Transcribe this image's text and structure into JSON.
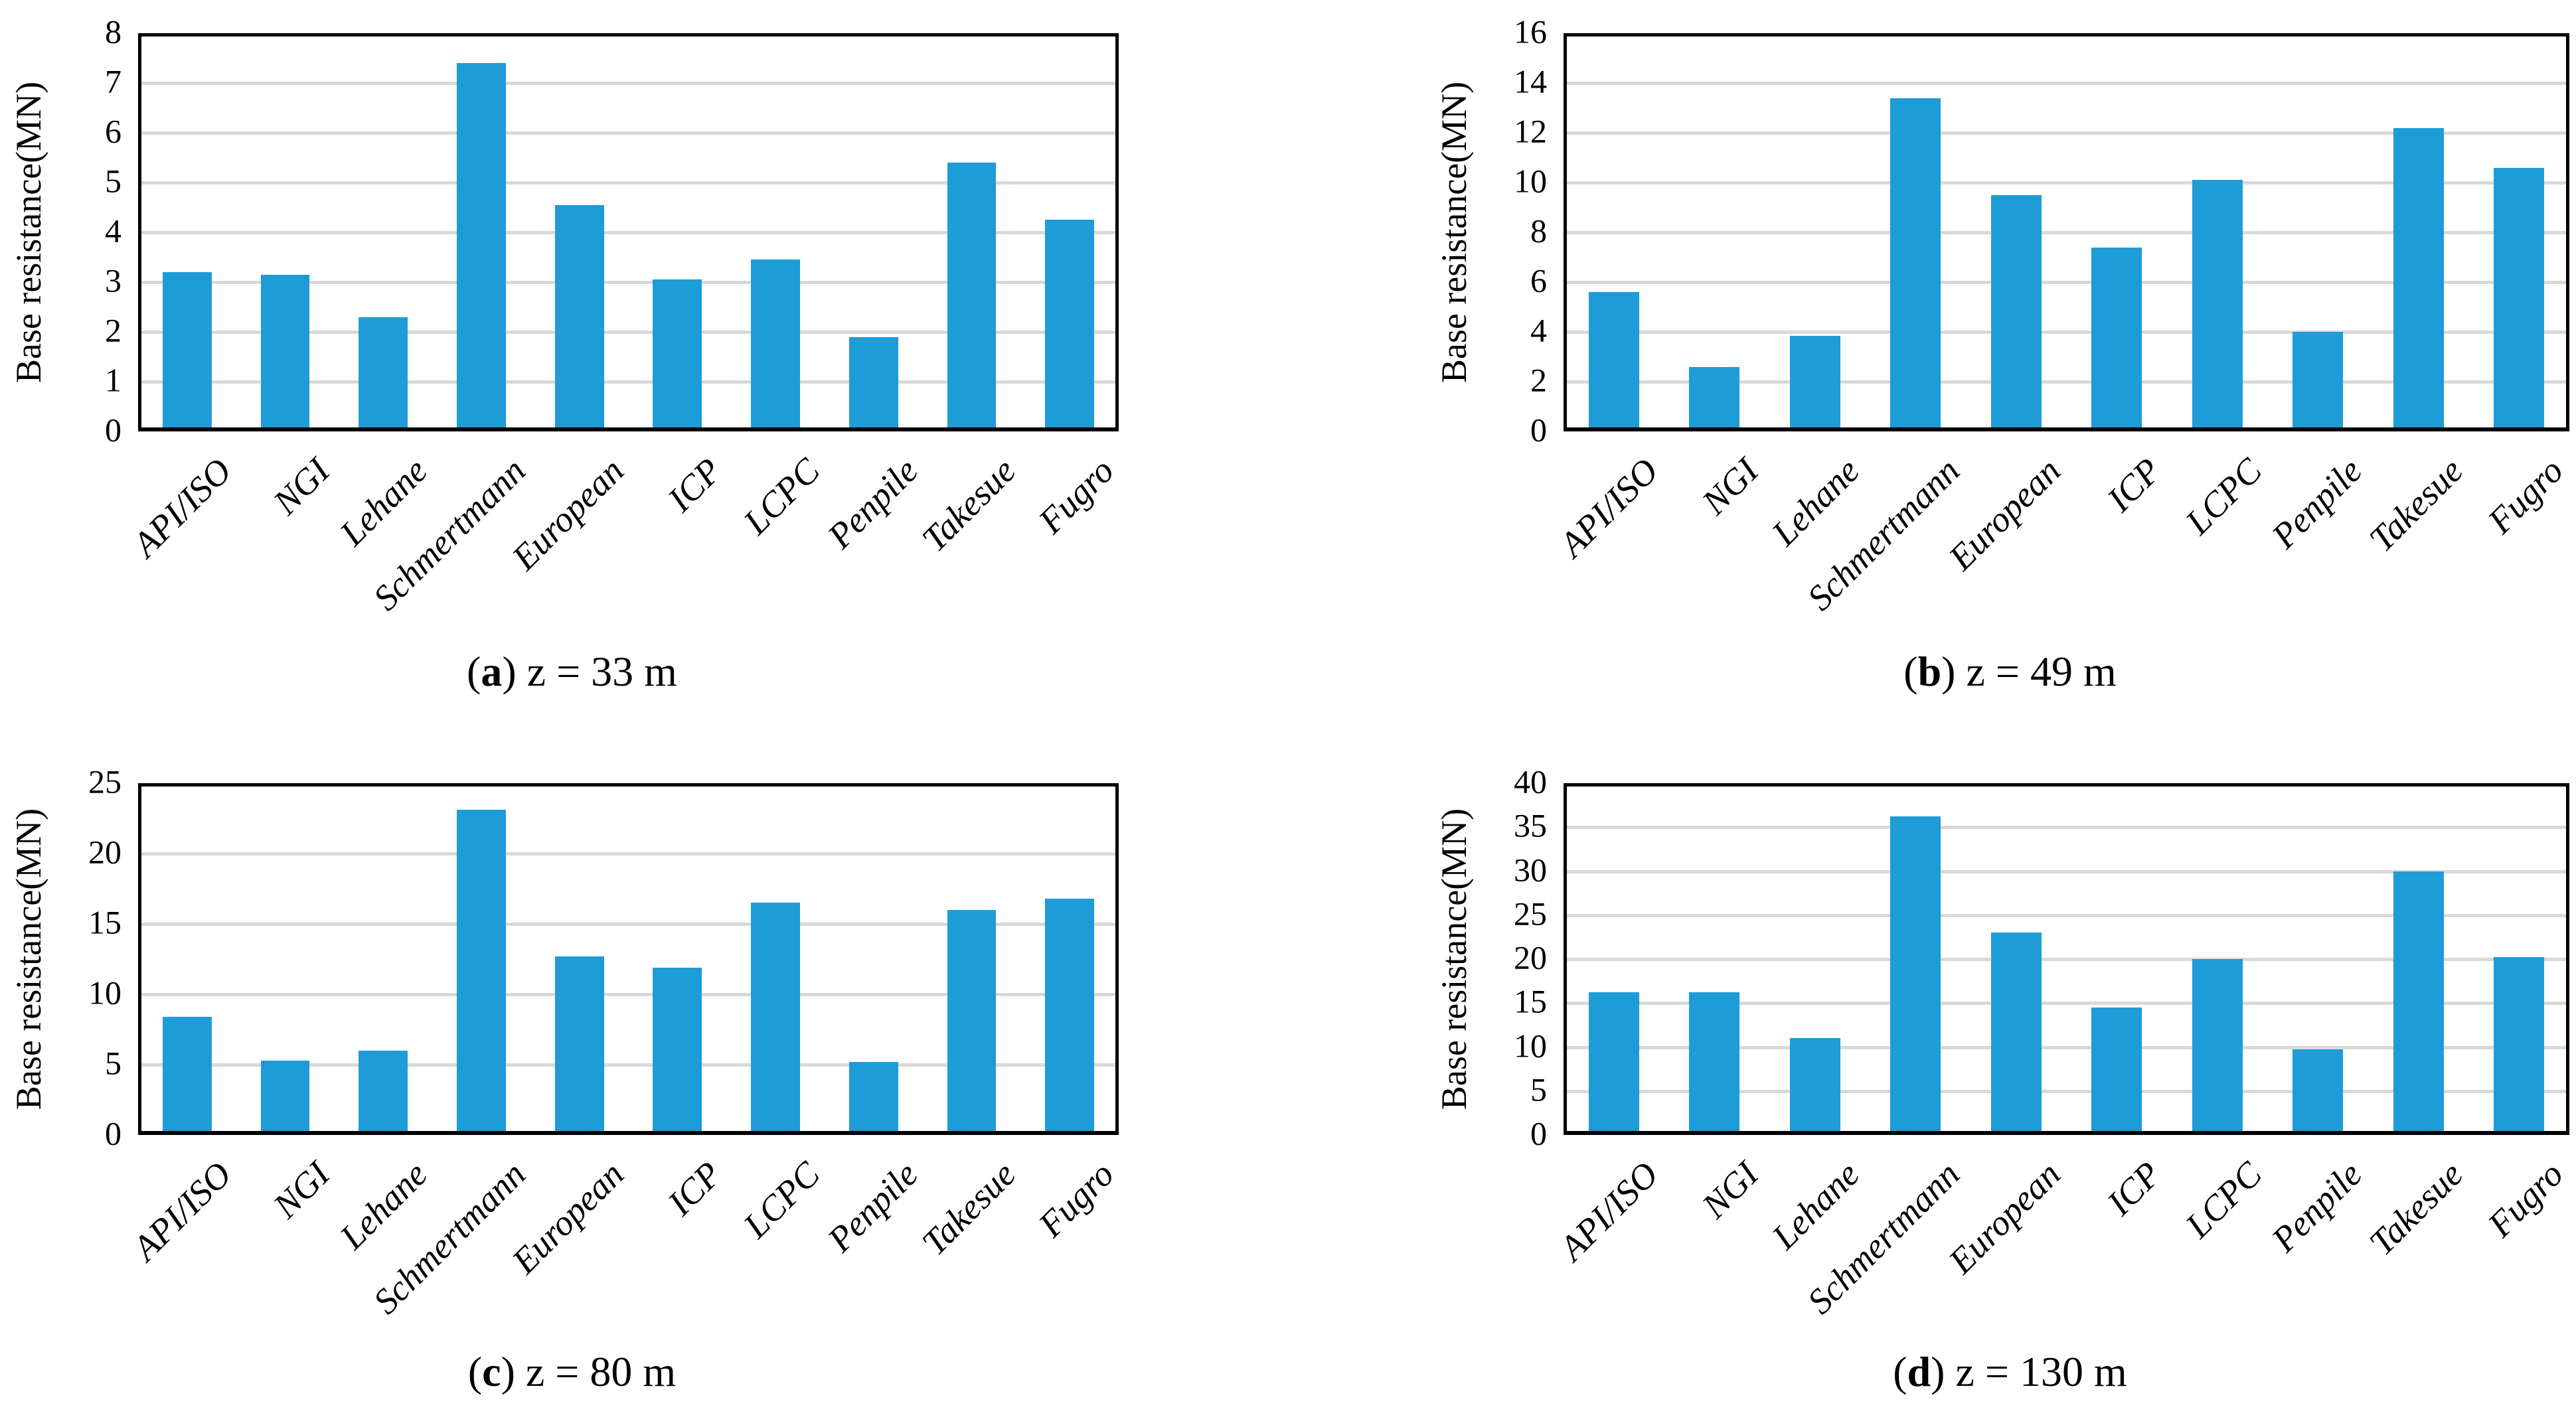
{
  "figure": {
    "background": "#FFFFFF",
    "bar_color": "#1E9CD7",
    "gridline_color": "#D9D9D9",
    "axis_color": "#000000"
  },
  "chart_data": [
    {
      "type": "bar",
      "panel": "a",
      "caption_open": "(",
      "caption_letter": "a",
      "caption_rest": ") z = 33 m",
      "ylabel": "Base resistance(MN)",
      "ylim": [
        0,
        8
      ],
      "ytick_step": 1,
      "yticks": [
        "0",
        "1",
        "2",
        "3",
        "4",
        "5",
        "6",
        "7",
        "8"
      ],
      "grid": true,
      "legend": false,
      "categories": [
        "API/ISO",
        "NGI",
        "Lehane",
        "Schmertmann",
        "European",
        "ICP",
        "LCPC",
        "Penpile",
        "Takesue",
        "Fugro"
      ],
      "values": [
        3.2,
        3.15,
        2.3,
        7.4,
        4.55,
        3.05,
        3.45,
        1.9,
        5.4,
        4.25
      ]
    },
    {
      "type": "bar",
      "panel": "b",
      "caption_open": "(",
      "caption_letter": "b",
      "caption_rest": ") z = 49 m",
      "ylabel": "Base resistance(MN)",
      "ylim": [
        0,
        16
      ],
      "ytick_step": 2,
      "yticks": [
        "0",
        "2",
        "4",
        "6",
        "8",
        "10",
        "12",
        "14",
        "16"
      ],
      "grid": true,
      "legend": false,
      "categories": [
        "API/ISO",
        "NGI",
        "Lehane",
        "Schmertmann",
        "European",
        "ICP",
        "LCPC",
        "Penpile",
        "Takesue",
        "Fugro"
      ],
      "values": [
        5.6,
        2.6,
        3.85,
        13.4,
        9.5,
        7.4,
        10.1,
        4.0,
        12.2,
        10.6
      ]
    },
    {
      "type": "bar",
      "panel": "c",
      "caption_open": "(",
      "caption_letter": "c",
      "caption_rest": ") z = 80 m",
      "ylabel": "Base resistance(MN)",
      "ylim": [
        0,
        25
      ],
      "ytick_step": 5,
      "yticks": [
        "0",
        "5",
        "10",
        "15",
        "20",
        "25"
      ],
      "grid": true,
      "legend": false,
      "categories": [
        "API/ISO",
        "NGI",
        "Lehane",
        "Schmertmann",
        "European",
        "ICP",
        "LCPC",
        "Penpile",
        "Takesue",
        "Fugro"
      ],
      "values": [
        8.4,
        5.3,
        6.0,
        23.1,
        12.7,
        11.9,
        16.5,
        5.2,
        16.0,
        16.8
      ]
    },
    {
      "type": "bar",
      "panel": "d",
      "caption_open": "(",
      "caption_letter": "d",
      "caption_rest": ") z = 130 m",
      "ylabel": "Base resistance(MN)",
      "ylim": [
        0,
        40
      ],
      "ytick_step": 5,
      "yticks": [
        "0",
        "5",
        "10",
        "15",
        "20",
        "25",
        "30",
        "35",
        "40"
      ],
      "grid": true,
      "legend": false,
      "categories": [
        "API/ISO",
        "NGI",
        "Lehane",
        "Schmertmann",
        "European",
        "ICP",
        "LCPC",
        "Penpile",
        "Takesue",
        "Fugro"
      ],
      "values": [
        16.2,
        16.2,
        11.0,
        36.2,
        23.0,
        14.5,
        20.0,
        9.7,
        30.0,
        20.2
      ]
    }
  ]
}
